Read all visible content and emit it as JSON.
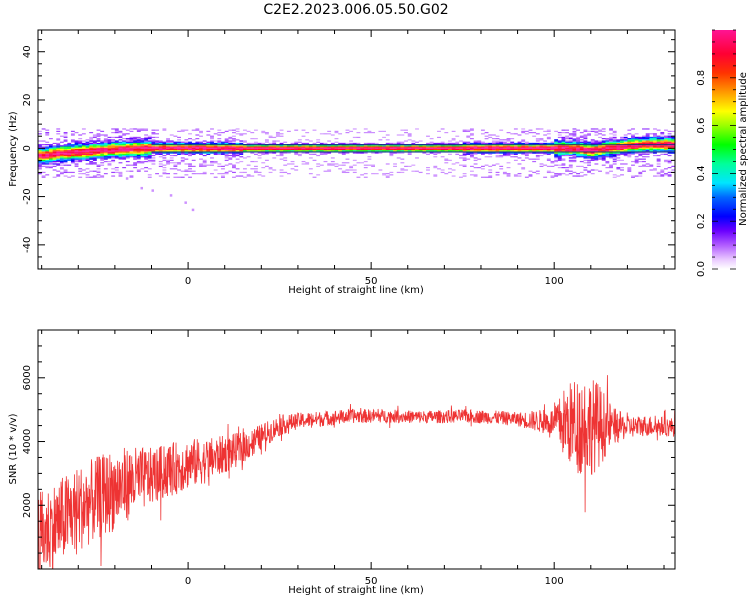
{
  "title": "C2E2.2023.006.05.50.G02",
  "chart_data": [
    {
      "type": "heatmap",
      "xlabel": "Height of straight line (km)",
      "ylabel": "Frequency (Hz)",
      "xlim": [
        -41,
        133
      ],
      "ylim": [
        -50,
        49
      ],
      "xticks": [
        0,
        50,
        100
      ],
      "yticks": [
        -40,
        -20,
        0,
        20,
        40
      ],
      "grid": false,
      "band_center_hz": [
        [
          -40,
          -3
        ],
        [
          -35,
          -2
        ],
        [
          -30,
          -1.5
        ],
        [
          -25,
          -1
        ],
        [
          -20,
          -0.5
        ],
        [
          -15,
          -0.2
        ],
        [
          -10,
          0
        ],
        [
          0,
          0
        ],
        [
          20,
          0
        ],
        [
          40,
          0
        ],
        [
          60,
          0
        ],
        [
          80,
          0
        ],
        [
          95,
          0
        ],
        [
          100,
          0
        ],
        [
          105,
          0
        ],
        [
          110,
          -1
        ],
        [
          115,
          0
        ],
        [
          120,
          1
        ],
        [
          125,
          1.5
        ],
        [
          133,
          1.5
        ]
      ],
      "colorbar": {
        "label": "Normalized spectral amplitude",
        "range": [
          0.0,
          1.0
        ],
        "ticks": [
          0.0,
          0.2,
          0.4,
          0.6,
          0.8
        ]
      }
    },
    {
      "type": "line",
      "xlabel": "Height of straight line (km)",
      "ylabel": "SNR (10 * v/v)",
      "xlim": [
        -41,
        133
      ],
      "ylim": [
        0,
        7500
      ],
      "xticks": [
        0,
        50,
        100
      ],
      "yticks": [
        2000,
        4000,
        6000
      ],
      "grid": false,
      "color": "#ee3333",
      "trend": [
        [
          -41,
          1000
        ],
        [
          -35,
          1500
        ],
        [
          -30,
          1900
        ],
        [
          -25,
          2200
        ],
        [
          -20,
          2500
        ],
        [
          -15,
          2750
        ],
        [
          -10,
          2900
        ],
        [
          -5,
          3100
        ],
        [
          0,
          3300
        ],
        [
          5,
          3400
        ],
        [
          10,
          3600
        ],
        [
          15,
          3800
        ],
        [
          20,
          4150
        ],
        [
          25,
          4500
        ],
        [
          30,
          4650
        ],
        [
          35,
          4700
        ],
        [
          40,
          4750
        ],
        [
          45,
          4800
        ],
        [
          50,
          4800
        ],
        [
          55,
          4800
        ],
        [
          60,
          4780
        ],
        [
          65,
          4770
        ],
        [
          70,
          4780
        ],
        [
          75,
          4800
        ],
        [
          80,
          4780
        ],
        [
          85,
          4750
        ],
        [
          90,
          4700
        ],
        [
          95,
          4650
        ],
        [
          100,
          4600
        ],
        [
          105,
          4550
        ],
        [
          110,
          4500
        ],
        [
          115,
          4500
        ],
        [
          120,
          4450
        ],
        [
          125,
          4500
        ],
        [
          133,
          4450
        ]
      ],
      "noise_amplitude": [
        [
          -41,
          1400
        ],
        [
          -20,
          1300
        ],
        [
          -10,
          900
        ],
        [
          0,
          800
        ],
        [
          10,
          600
        ],
        [
          20,
          400
        ],
        [
          30,
          250
        ],
        [
          60,
          200
        ],
        [
          90,
          220
        ],
        [
          100,
          450
        ],
        [
          103,
          1200
        ],
        [
          108,
          1700
        ],
        [
          112,
          1400
        ],
        [
          116,
          600
        ],
        [
          120,
          350
        ],
        [
          133,
          300
        ]
      ]
    }
  ]
}
